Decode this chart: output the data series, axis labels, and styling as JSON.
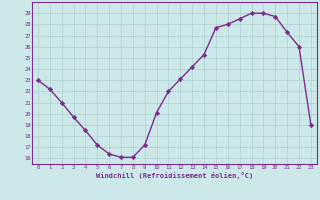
{
  "x": [
    0,
    1,
    2,
    3,
    4,
    5,
    6,
    7,
    8,
    9,
    10,
    11,
    12,
    13,
    14,
    15,
    16,
    17,
    18,
    19,
    20,
    21,
    22,
    23
  ],
  "y": [
    23,
    22.2,
    21,
    19.7,
    18.5,
    17.2,
    16.4,
    16.1,
    16.1,
    17.2,
    20.1,
    22.0,
    23.1,
    24.2,
    25.3,
    27.7,
    28.0,
    28.5,
    29.0,
    29.0,
    28.7,
    27.3,
    26.0,
    19.0
  ],
  "xlabel": "Windchill (Refroidissement éolien,°C)",
  "xlim": [
    -0.5,
    23.5
  ],
  "ylim": [
    15.5,
    30
  ],
  "yticks": [
    16,
    17,
    18,
    19,
    20,
    21,
    22,
    23,
    24,
    25,
    26,
    27,
    28,
    29
  ],
  "xticks": [
    0,
    1,
    2,
    3,
    4,
    5,
    6,
    7,
    8,
    9,
    10,
    11,
    12,
    13,
    14,
    15,
    16,
    17,
    18,
    19,
    20,
    21,
    22,
    23
  ],
  "line_color": "#7b2d8b",
  "bg_color": "#cce8e8",
  "grid_color": "#aed0d0",
  "text_color": "#7b2d8b",
  "marker": "D",
  "markersize": 2.2,
  "linewidth": 1.0
}
